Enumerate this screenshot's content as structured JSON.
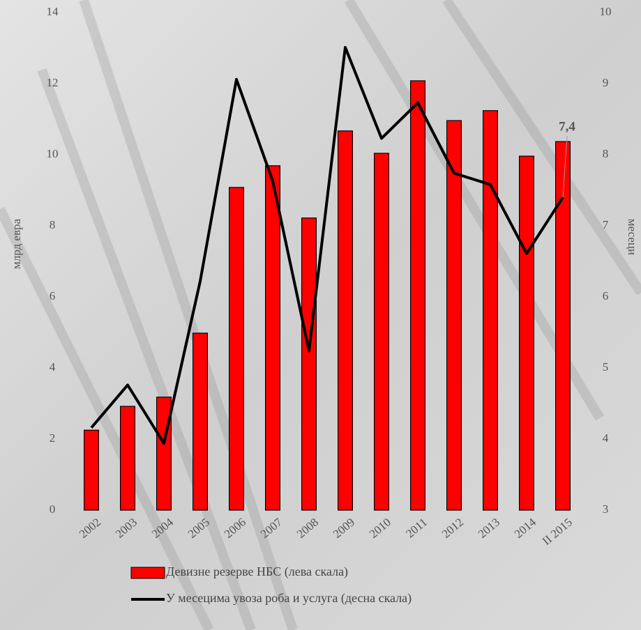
{
  "chart_data": {
    "type": "bar-line",
    "categories": [
      "2002",
      "2003",
      "2004",
      "2005",
      "2006",
      "2007",
      "2008",
      "2009",
      "2010",
      "2011",
      "2012",
      "2013",
      "2014",
      "II 2015"
    ],
    "series": [
      {
        "name": "Девизне резерве НБС (лева скала)",
        "color": "#ff0000",
        "type": "bar",
        "values": [
          2.25,
          2.92,
          3.18,
          4.98,
          9.08,
          9.69,
          8.22,
          10.67,
          10.04,
          12.08,
          10.96,
          11.24,
          9.96,
          10.37
        ]
      },
      {
        "name": "У месецима увоза роба и услуга (десна скала)",
        "color": "#000000",
        "type": "line",
        "axis": "y2",
        "values": [
          4.16,
          4.76,
          3.94,
          6.22,
          9.06,
          7.63,
          5.24,
          9.51,
          8.23,
          8.73,
          7.74,
          7.58,
          6.61,
          7.4
        ],
        "value_labels": [
          null,
          null,
          null,
          null,
          null,
          null,
          null,
          null,
          null,
          null,
          null,
          null,
          null,
          "7,4"
        ]
      }
    ],
    "ylabel": "млрд евра",
    "y2label": "месеци",
    "ylim": [
      0,
      14
    ],
    "yticks": [
      0,
      2,
      4,
      6,
      8,
      10,
      12,
      14
    ],
    "y2lim": [
      3,
      10
    ],
    "y2ticks": [
      3,
      4,
      5,
      6,
      7,
      8,
      9,
      10
    ],
    "legend": "bottom"
  }
}
